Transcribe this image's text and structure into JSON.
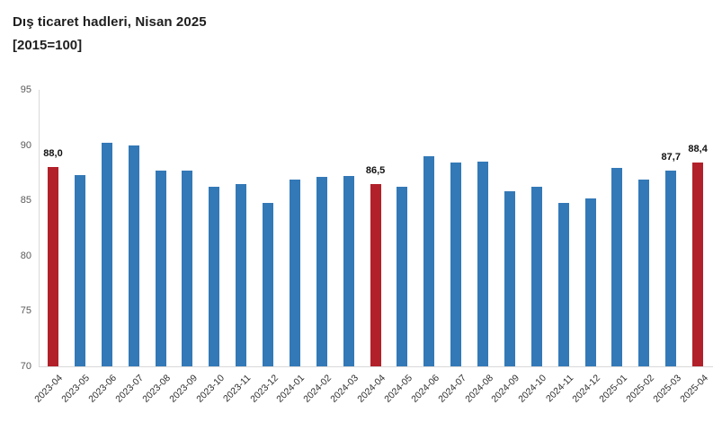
{
  "title": "Dış ticaret hadleri, Nisan 2025",
  "subtitle": "[2015=100]",
  "colors": {
    "bar_default": "#3379b7",
    "bar_highlight": "#b2202a",
    "axis_line": "#d9d9d9",
    "y_tick_label": "#595959",
    "x_tick_label": "#2f2f2f",
    "value_label": "#111111"
  },
  "chart_data": {
    "type": "bar",
    "title": "Dış ticaret hadleri, Nisan 2025",
    "subtitle": "[2015=100]",
    "xlabel": "",
    "ylabel": "",
    "ylim": [
      70,
      95
    ],
    "yticks": [
      70,
      75,
      80,
      85,
      90,
      95
    ],
    "grid": false,
    "legend": false,
    "categories": [
      "2023-04",
      "2023-05",
      "2023-06",
      "2023-07",
      "2023-08",
      "2023-09",
      "2023-10",
      "2023-11",
      "2023-12",
      "2024-01",
      "2024-02",
      "2024-03",
      "2024-04",
      "2024-05",
      "2024-06",
      "2024-07",
      "2024-08",
      "2024-09",
      "2024-10",
      "2024-11",
      "2024-12",
      "2025-01",
      "2025-02",
      "2025-03",
      "2025-04"
    ],
    "values": [
      88.0,
      87.3,
      90.2,
      90.0,
      87.7,
      87.7,
      86.2,
      86.5,
      84.8,
      86.9,
      87.1,
      87.2,
      86.5,
      86.2,
      89.0,
      88.4,
      88.5,
      85.8,
      86.2,
      84.8,
      85.2,
      87.9,
      86.9,
      87.7,
      88.4
    ],
    "highlight_indices": [
      0,
      12,
      24
    ],
    "data_labels": [
      "88,0",
      "",
      "",
      "",
      "",
      "",
      "",
      "",
      "",
      "",
      "",
      "",
      "86,5",
      "",
      "",
      "",
      "",
      "",
      "",
      "",
      "",
      "",
      "",
      "87,7",
      "88,4"
    ]
  }
}
